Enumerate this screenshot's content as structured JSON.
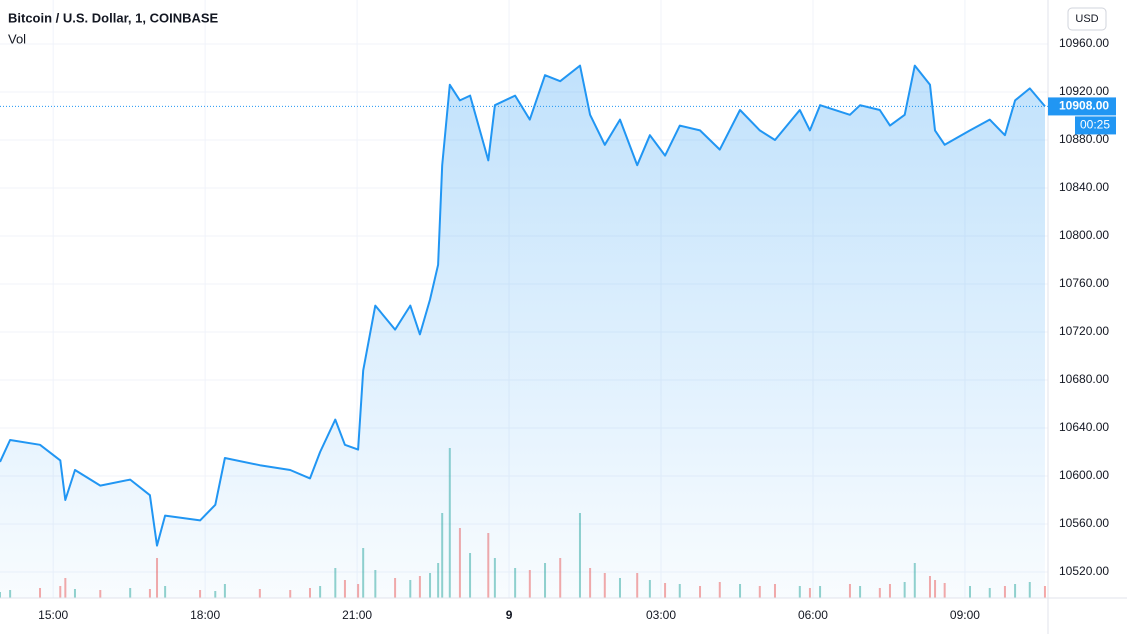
{
  "chart_data": {
    "type": "area",
    "title": "Bitcoin / U.S. Dollar, 1, COINBASE",
    "currency": "USD",
    "x": [
      13.95,
      14.15,
      14.74,
      15.14,
      15.24,
      15.43,
      15.93,
      16.52,
      16.91,
      17.05,
      17.21,
      17.9,
      18.2,
      18.39,
      19.08,
      19.68,
      20.07,
      20.27,
      20.57,
      20.76,
      21.02,
      21.12,
      21.36,
      21.75,
      22.05,
      22.24,
      22.44,
      22.6,
      22.68,
      22.83,
      23.03,
      23.23,
      23.59,
      23.72,
      24.12,
      24.41,
      24.71,
      25.01,
      25.4,
      25.6,
      25.89,
      26.19,
      26.53,
      26.78,
      27.08,
      27.37,
      27.77,
      28.16,
      28.56,
      28.95,
      29.25,
      29.74,
      29.94,
      30.14,
      30.73,
      30.93,
      31.32,
      31.52,
      31.81,
      32.01,
      32.31,
      32.41,
      32.6,
      33.1,
      33.49,
      33.79,
      33.99,
      34.28,
      34.58
    ],
    "series": [
      {
        "color": "#2196f3",
        "values": [
          10611.7,
          10630,
          10626,
          10613,
          10580,
          10605,
          10592,
          10597,
          10584,
          10542,
          10567,
          10563,
          10576,
          10615,
          10609,
          10605,
          10598,
          10620,
          10647,
          10626,
          10622,
          10688,
          10742,
          10722,
          10742,
          10718,
          10747,
          10776,
          10859,
          10926,
          10913,
          10917,
          10863,
          10909,
          10917,
          10897,
          10934,
          10929,
          10942,
          10901,
          10876,
          10897,
          10859,
          10884,
          10867,
          10892,
          10888,
          10872,
          10905,
          10888,
          10880,
          10905,
          10888,
          10909,
          10901,
          10909,
          10905,
          10892,
          10901,
          10942,
          10926,
          10888,
          10876,
          10888,
          10897,
          10884,
          10913,
          10923,
          10908
        ]
      },
      {
        "name": "Vol",
        "color": "#26a69a",
        "values": [
          6,
          8,
          10,
          12,
          20,
          9,
          8,
          10,
          9,
          40,
          12,
          8,
          7,
          14,
          9,
          8,
          10,
          12,
          30,
          18,
          14,
          50,
          28,
          20,
          18,
          22,
          25,
          35,
          85,
          150,
          70,
          45,
          65,
          40,
          30,
          28,
          35,
          40,
          85,
          30,
          25,
          20,
          25,
          18,
          15,
          14,
          12,
          16,
          14,
          12,
          14,
          12,
          10,
          12,
          14,
          12,
          10,
          14,
          16,
          35,
          22,
          18,
          15,
          12,
          10,
          12,
          14,
          16,
          12
        ]
      }
    ],
    "xlim": [
      13.95,
      34.64
    ],
    "xticks": [
      {
        "value": 15,
        "label": "15:00"
      },
      {
        "value": 18,
        "label": "18:00"
      },
      {
        "value": 21,
        "label": "21:00"
      },
      {
        "value": 24,
        "label": "9"
      },
      {
        "value": 27,
        "label": "03:00"
      },
      {
        "value": 30,
        "label": "06:00"
      },
      {
        "value": 33,
        "label": "09:00"
      }
    ],
    "ylim": [
      10498.3,
      10996.7
    ],
    "yticks": [
      {
        "value": 10520,
        "label": "10520.00"
      },
      {
        "value": 10560,
        "label": "10560.00"
      },
      {
        "value": 10600,
        "label": "10600.00"
      },
      {
        "value": 10640,
        "label": "10640.00"
      },
      {
        "value": 10680,
        "label": "10680.00"
      },
      {
        "value": 10720,
        "label": "10720.00"
      },
      {
        "value": 10760,
        "label": "10760.00"
      },
      {
        "value": 10800,
        "label": "10800.00"
      },
      {
        "value": 10840,
        "label": "10840.00"
      },
      {
        "value": 10880,
        "label": "10880.00"
      },
      {
        "value": 10920,
        "label": "10920.00"
      },
      {
        "value": 10960,
        "label": "10960.00"
      }
    ],
    "last_price": {
      "value": 10908,
      "label": "10908.00"
    },
    "countdown": "00:25",
    "grid": true
  }
}
